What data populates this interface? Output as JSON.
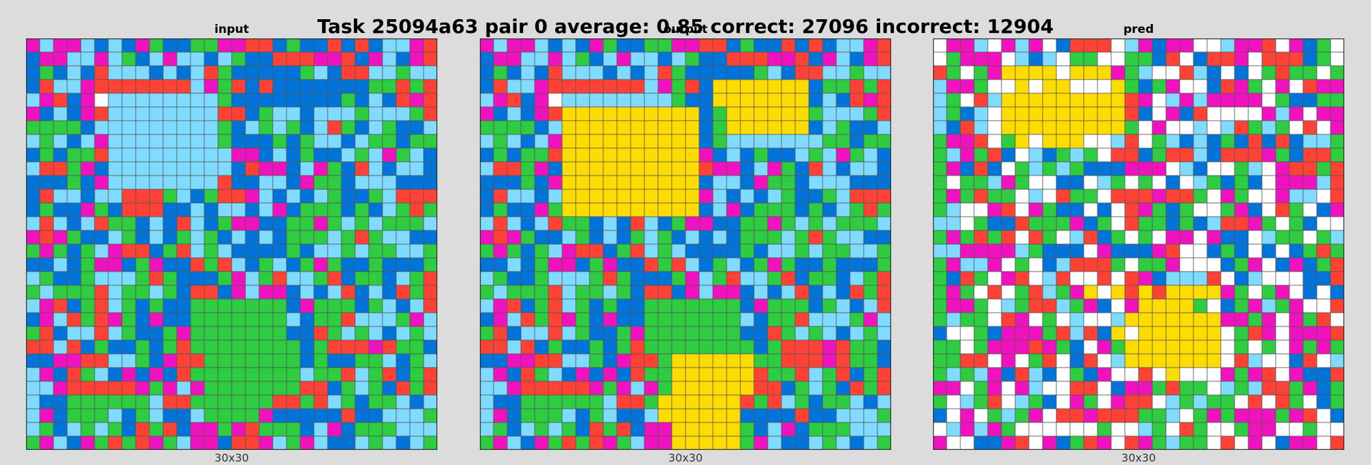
{
  "title": "Task 25094a63 pair 0 average: 0.85 correct: 27096 incorrect: 12904",
  "palette": {
    "0": "#ffffff",
    "1": "#0074d9",
    "2": "#ff4136",
    "3": "#2ecc40",
    "4": "#ffdc00",
    "5": "#aaaaaa",
    "6": "#f012be",
    "7": "#ff851b",
    "8": "#7fdbff",
    "9": "#870c25"
  },
  "grid_line_color": "#555555",
  "panels": [
    {
      "name": "input",
      "title": "input",
      "caption": "30x30",
      "rows": [
        "686681816311336622131121218862",
        "166886831868818311222662168162",
        "131812888181823111113812288388",
        "128862222222863212111111133232",
        "862160888888883111111113181262",
        "618162888888882213881888388832",
        "333318888888883183831823183118",
        "838186888888883111313881833133",
        "131332888888888661813118386381",
        "822361888888888126618631281881",
        "111316888888882118816331888111",
        "128818822238132268181831138222",
        "131163122211818818613331318323",
        "828182331812813661133638383338",
        "626311831813831818133383238811",
        "363138622132838111131883833883",
        "118136613611232813813631131113",
        "831138883231113683288321331832",
        "383332833831221686618182181232",
        "862132831311333333316333138182",
        "168232631611333333381332888368",
        "321882831136333333311238381838",
        "228213113132333333331322262331",
        "116622883162233333331311338138",
        "861238161612333333338332832132",
        "886222226368633333332213831232",
        "811333333822333333223283133818",
        "861333813811833336111112118883",
        "831838312321663623331861333888",
        "368163232638661226836811838183"
      ]
    },
    {
      "name": "output",
      "title": "output",
      "caption": "30x30",
      "rows": [
        "686681816311336622131121218862",
        "166886831868818311222662168162",
        "131812888181823111113812288388",
        "128862222222863214444444133232",
        "862160888888883114444444181262",
        "618162444444444413444444388832",
        "333318444444444413444444183118",
        "838186444444444413888888833133",
        "131332444444444461813118386381",
        "822361444444444426618631281881",
        "111316444444444418816331888111",
        "128818444444444468181831138222",
        "131163444444444418613331318323",
        "828182331812813661133638383338",
        "626311831813831818133383238811",
        "363138622132838111131883833883",
        "118136613611232813813631131113",
        "831138883231113683288321331832",
        "383332833831221686618182181232",
        "862132831311333333316333138182",
        "168232631611333333381332888368",
        "321882831136333333311238381838",
        "228213113132333333331322262331",
        "116622883162234444443322262331",
        "861238161612334444442332832132",
        "886222226368634444442213831232",
        "811333333822344444423283133818",
        "861333813811844444411112118883",
        "831838312321664444431861333888",
        "368163232638664444436811838183"
      ]
    },
    {
      "name": "pred",
      "title": "pred",
      "caption": "30x30",
      "rows": [
        "066806860122208616600866206130",
        "036660818033003312012260222130",
        "230364444044463800281010323303",
        "866300404400043136001263060266",
        "830284444444442608686666031133",
        "831804444444442106120000686066",
        "812804444444443060080823830206",
        "366203404440082038181312121883",
        "386321081383022132281222631223",
        "361210383831116660810038062232",
        "303386300110830301083131066682",
        "363233080233022262230630068802",
        "380062063110102631300361023016",
        "880311233361302331318226303100",
        "363232023082130306606110833038",
        "886666831110611162001310101323",
        "368860301822230336000136016132",
        "312306208200202618882018000112",
        "363020328364042424444630360101",
        "366308322836106444430136836002",
        "383302603080084444444663606320",
        "100316663282140444444032606662",
        "330366626310634444444030306363",
        "332206032012084444444028001208",
        "383861281031600204000636206112",
        "660360680022016632330838223613",
        "308320831063062208383302023013",
        "106038360226222338036366636201",
        "086863000000300830230036600300",
        "600116206132602638330206016602"
      ]
    }
  ]
}
